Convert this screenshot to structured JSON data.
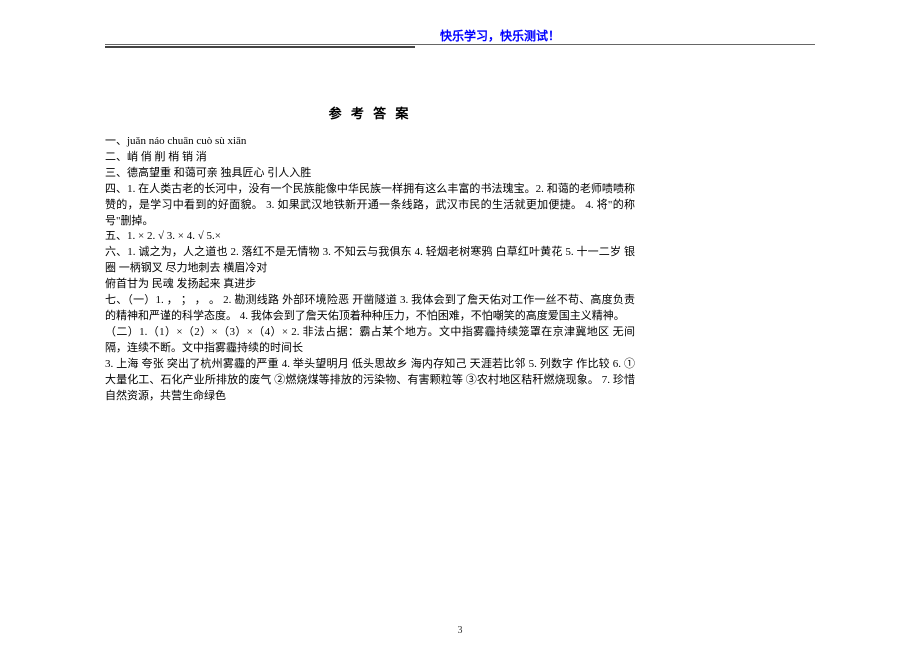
{
  "header": {
    "banner": "快乐学习，快乐测试！"
  },
  "answerKey": {
    "title": "参 考 答 案",
    "sectionOne": "一、juǎn  náo  chuān  cuò  sù  xiān",
    "sectionTwo": "二、峭  俏  削  梢  销  消",
    "sectionThree": "三、德高望重   和蔼可亲   独具匠心   引人入胜",
    "sectionFour": "四、1. 在人类古老的长河中，没有一个民族能像中华民族一样拥有这么丰富的书法瑰宝。2. 和蔼的老师啧啧称赞的，是学习中看到的好面貌。  3. 如果武汉地铁新开通一条线路，武汉市民的生活就更加便捷。  4. 将\"的称号\"删掉。",
    "sectionFive": "五、1. × 2. √ 3. × 4. √ 5.×",
    "sectionSix": "六、1. 诚之为，人之道也   2. 落红不是无情物   3. 不知云与我俱东   4. 轻烟老树寒鸦   白草红叶黄花   5. 十一二岁   银圈   一柄钢叉    尽力地刺去   横眉冷对",
    "sectionSixCont": "俯首甘为   民魂   发扬起来   真进步",
    "sectionSeven": "七、（一）1.    ，   ；    ，   。  2. 勘测线路   外部环境险恶   开凿隧道   3. 我体会到了詹天佑对工作一丝不苟、高度负责的精神和严谨的科学态度。   4. 我体会到了詹天佑顶着种种压力，不怕困难，不怕嘲笑的高度爱国主义精神。",
    "sectionSevenTwo": "（二）1.（1）×（2）×（3）×（4）×  2. 非法占据：霸占某个地方。文中指雾霾持续笼罩在京津冀地区   无间隔，连续不断。文中指雾霾持续的时间长",
    "line3": "3. 上海   夸张   突出了杭州雾霾的严重   4. 举头望明月   低头思故乡   海内存知己   天涯若比邻   5. 列数字   作比较   6. ①大量化工、石化产业所排放的废气   ②燃烧煤等排放的污染物、有害颗粒等   ③农村地区秸秆燃烧现象。  7. 珍惜自然资源，共营生命绿色"
  },
  "pageNumber": "3",
  "style": {
    "banner_color": "#0000ff",
    "text_color": "#000000",
    "bg": "#ffffff",
    "font_body": 11,
    "font_title": 13
  }
}
